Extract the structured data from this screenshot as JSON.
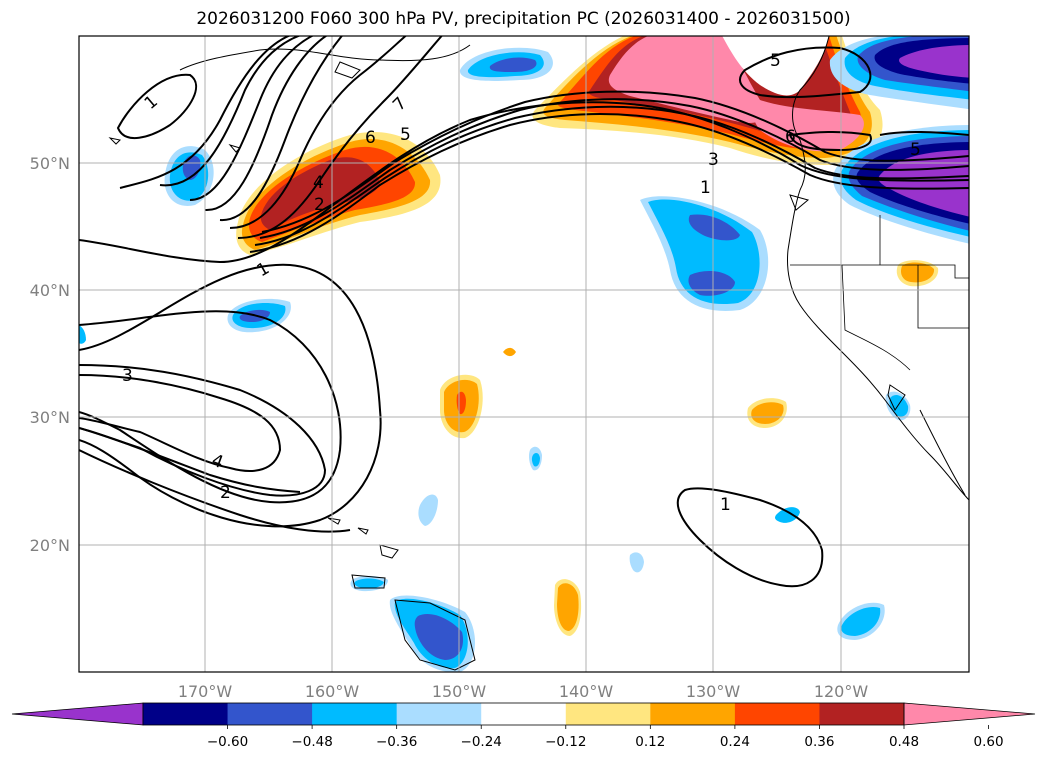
{
  "title": "2026031200 F060 300 hPa PV, precipitation PC (2026031400 - 2026031500)",
  "map": {
    "lat_labels": [
      "50°N",
      "40°N",
      "30°N",
      "20°N"
    ],
    "lon_labels": [
      "170°W",
      "160°W",
      "150°W",
      "140°W",
      "130°W",
      "120°W"
    ],
    "lon_range": [
      -180,
      -110
    ],
    "lat_range": [
      10,
      60
    ],
    "gridlines": true,
    "contour_labels": [
      "1",
      "7",
      "6",
      "5",
      "4",
      "2",
      "1",
      "3",
      "4",
      "2",
      "5",
      "3",
      "1",
      "6",
      "5",
      "1"
    ]
  },
  "colorbar": {
    "tick_labels": [
      "−0.60",
      "−0.48",
      "−0.36",
      "−0.24",
      "−0.12",
      "0.12",
      "0.24",
      "0.36",
      "0.48",
      "0.60"
    ],
    "colors": [
      "#9933cc",
      "#000088",
      "#3355cc",
      "#00bbff",
      "#aaddff",
      "#ffffff",
      "#ffe680",
      "#ffa500",
      "#ff4500",
      "#b22222",
      "#ff88aa"
    ],
    "extend": "both"
  }
}
